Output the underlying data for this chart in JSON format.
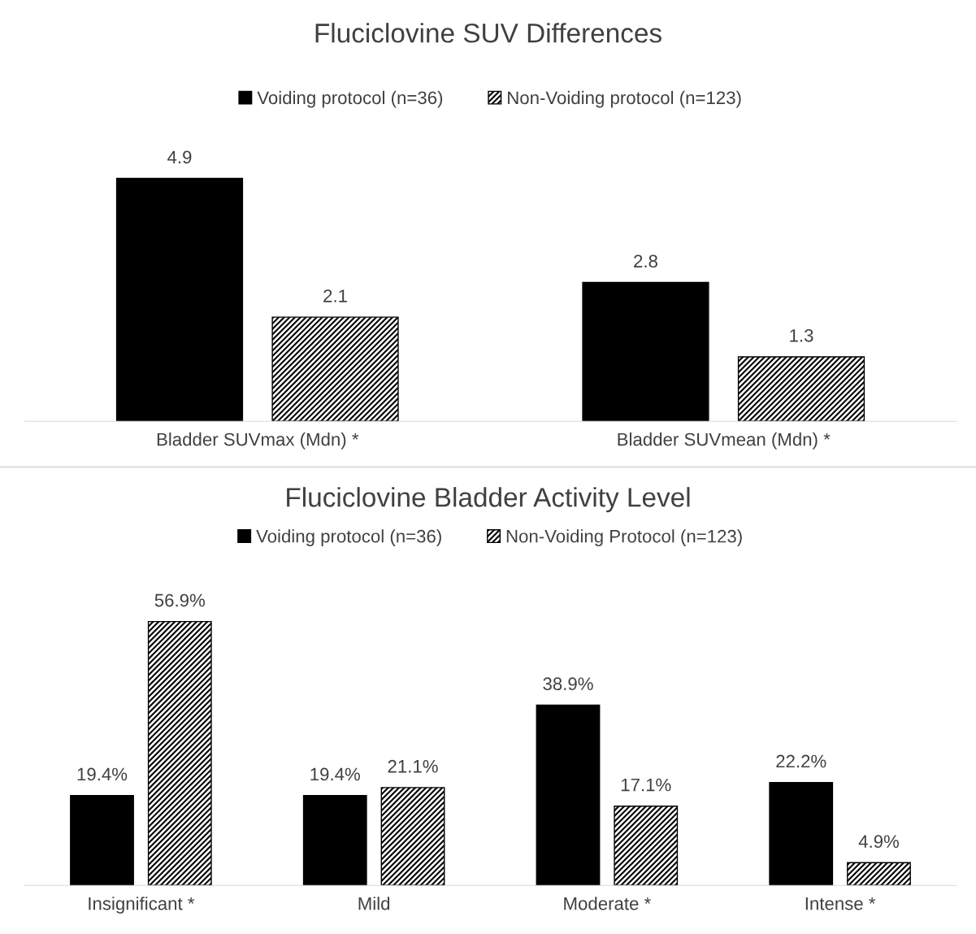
{
  "chart_data": [
    {
      "type": "bar",
      "title": "Fluciclovine SUV Differences",
      "categories": [
        "Bladder SUVmax (Mdn) *",
        "Bladder SUVmean (Mdn) *"
      ],
      "legend": "top",
      "data_labels": true,
      "series": [
        {
          "name": "Voiding protocol (n=36)",
          "color": "#000000",
          "values": [
            4.9,
            2.8
          ]
        },
        {
          "name": "Non-Voiding protocol (n=123)",
          "color": "#000000",
          "values": [
            2.1,
            1.3
          ]
        }
      ]
    },
    {
      "type": "bar",
      "title": "Fluciclovine Bladder Activity Level",
      "categories": [
        "Insignificant *",
        "Mild",
        "Moderate *",
        "Intense *"
      ],
      "legend": "top",
      "series": [
        {
          "name": "Voiding protocol (n=36)",
          "color": "#000000",
          "values": [
            19.4,
            19.4,
            38.9,
            22.2
          ],
          "value_labels": [
            "19.4%",
            "19.4%",
            "38.9%",
            "22.2%"
          ]
        },
        {
          "name": "Non-Voiding Protocol (n=123)",
          "color": "#000000",
          "values": [
            56.9,
            21.1,
            17.1,
            4.9
          ],
          "value_labels": [
            "56.9%",
            "21.1%",
            "17.1%",
            "4.9%"
          ]
        }
      ]
    }
  ]
}
